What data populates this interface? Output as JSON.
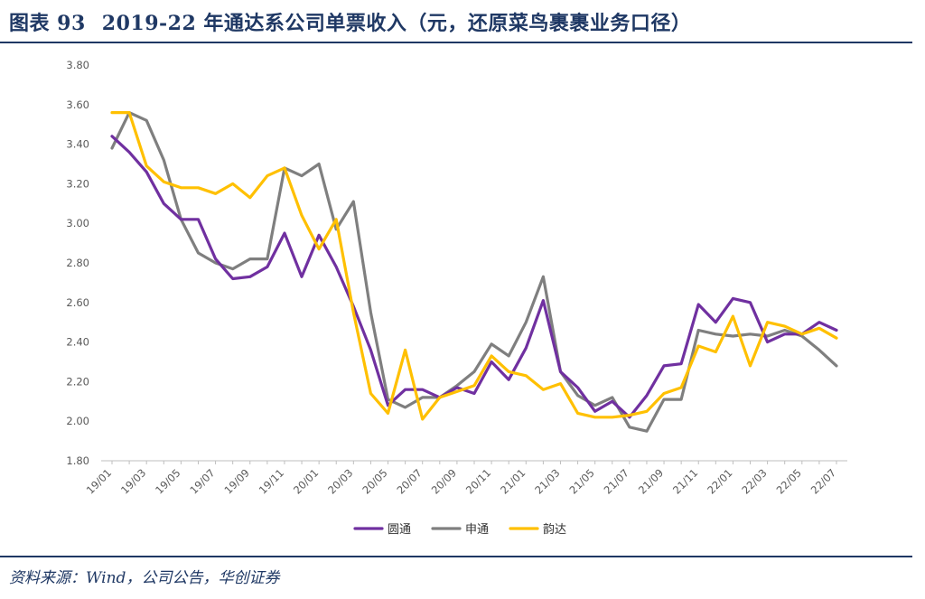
{
  "header": {
    "figure_number": "图表 93",
    "title": "2019-22 年通达系公司单票收入（元，还原菜鸟裹裹业务口径）"
  },
  "footer": {
    "source": "资料来源：Wind，公司公告，华创证券"
  },
  "colors": {
    "title": "#1f3864",
    "yuantong": "#7030a0",
    "shentong": "#7f7f7f",
    "yunda": "#ffc000"
  },
  "chart_data": {
    "type": "line",
    "title": "",
    "xlabel": "",
    "ylabel": "",
    "ylim": [
      1.8,
      3.8
    ],
    "yticks": [
      "1.80",
      "2.00",
      "2.20",
      "2.40",
      "2.60",
      "2.80",
      "3.00",
      "3.20",
      "3.40",
      "3.60",
      "3.80"
    ],
    "grid": false,
    "legend_position": "bottom",
    "x": [
      "19/01",
      "19/02",
      "19/03",
      "19/04",
      "19/05",
      "19/06",
      "19/07",
      "19/08",
      "19/09",
      "19/10",
      "19/11",
      "19/12",
      "20/01",
      "20/02",
      "20/03",
      "20/04",
      "20/05",
      "20/06",
      "20/07",
      "20/08",
      "20/09",
      "20/10",
      "20/11",
      "20/12",
      "21/01",
      "21/02",
      "21/03",
      "21/04",
      "21/05",
      "21/06",
      "21/07",
      "21/08",
      "21/09",
      "21/10",
      "21/11",
      "21/12",
      "22/01",
      "22/02",
      "22/03",
      "22/04",
      "22/05",
      "22/06",
      "22/07"
    ],
    "xtick_labels": [
      "19/01",
      "19/03",
      "19/05",
      "19/07",
      "19/09",
      "19/11",
      "20/01",
      "20/03",
      "20/05",
      "20/07",
      "20/09",
      "20/11",
      "21/01",
      "21/03",
      "21/05",
      "21/07",
      "21/09",
      "21/11",
      "22/01",
      "22/03",
      "22/05",
      "22/07"
    ],
    "series": [
      {
        "name": "圆通",
        "color": "#7030a0",
        "values": [
          3.44,
          3.36,
          3.26,
          3.1,
          3.02,
          3.02,
          2.82,
          2.72,
          2.73,
          2.78,
          2.95,
          2.73,
          2.94,
          2.78,
          2.58,
          2.36,
          2.08,
          2.16,
          2.16,
          2.12,
          2.17,
          2.14,
          2.3,
          2.21,
          2.37,
          2.61,
          2.25,
          2.17,
          2.05,
          2.1,
          2.02,
          2.13,
          2.28,
          2.29,
          2.59,
          2.5,
          2.62,
          2.6,
          2.4,
          2.44,
          2.44,
          2.5,
          2.46
        ]
      },
      {
        "name": "申通",
        "color": "#7f7f7f",
        "values": [
          3.38,
          3.56,
          3.52,
          3.32,
          3.02,
          2.85,
          2.8,
          2.77,
          2.82,
          2.82,
          3.28,
          3.24,
          3.3,
          2.97,
          3.11,
          2.55,
          2.11,
          2.07,
          2.12,
          2.12,
          2.18,
          2.25,
          2.39,
          2.33,
          2.5,
          2.73,
          2.25,
          2.13,
          2.08,
          2.12,
          1.97,
          1.95,
          2.11,
          2.11,
          2.46,
          2.44,
          2.43,
          2.44,
          2.43,
          2.46,
          2.43,
          2.36,
          2.28
        ]
      },
      {
        "name": "韵达",
        "color": "#ffc000",
        "values": [
          3.56,
          3.56,
          3.29,
          3.21,
          3.18,
          3.18,
          3.15,
          3.2,
          3.13,
          3.24,
          3.28,
          3.04,
          2.87,
          3.02,
          2.55,
          2.14,
          2.04,
          2.36,
          2.01,
          2.12,
          2.15,
          2.18,
          2.33,
          2.25,
          2.23,
          2.16,
          2.19,
          2.04,
          2.02,
          2.02,
          2.03,
          2.05,
          2.14,
          2.17,
          2.38,
          2.35,
          2.53,
          2.28,
          2.5,
          2.48,
          2.44,
          2.47,
          2.42
        ]
      }
    ]
  }
}
